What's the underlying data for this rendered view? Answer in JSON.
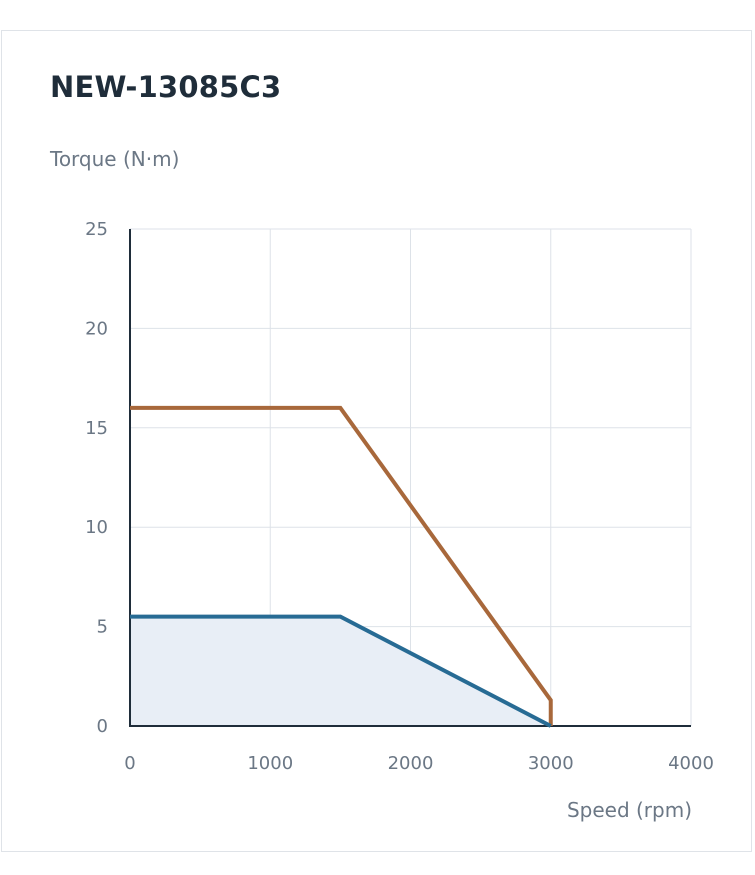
{
  "chart_data": {
    "type": "line",
    "title": "NEW-13085C3",
    "ylabel": "Torque (N·m)",
    "xlabel": "Speed (rpm)",
    "xlim": [
      0,
      4000
    ],
    "ylim": [
      0,
      25
    ],
    "xticks": [
      0,
      1000,
      2000,
      3000,
      4000
    ],
    "yticks": [
      0,
      5,
      10,
      15,
      20,
      25
    ],
    "grid": true,
    "series": [
      {
        "color": "#a8683b",
        "fill": false,
        "points": [
          [
            0,
            16.0
          ],
          [
            1500,
            16.0
          ],
          [
            3000,
            1.3
          ],
          [
            3000,
            0
          ]
        ]
      },
      {
        "color": "#276b94",
        "fill": true,
        "fill_color": "#e8eef6",
        "points": [
          [
            0,
            5.5
          ],
          [
            1500,
            5.5
          ],
          [
            3000,
            0
          ]
        ]
      }
    ]
  }
}
